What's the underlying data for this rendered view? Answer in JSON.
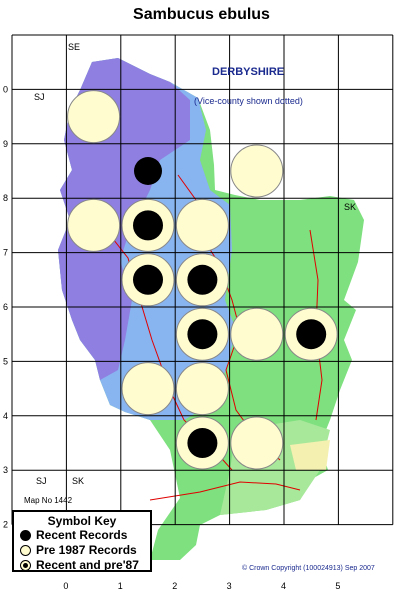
{
  "title": "Sambucus ebulus",
  "county_name": "DERBYSHIRE",
  "county_note": "(Vice-county shown dotted)",
  "grid_labels": {
    "top_se": "SE",
    "top_sj": "SJ",
    "bottom_sj": "SJ",
    "bottom_sk": "SK",
    "right_sk": "SK"
  },
  "map_number": "Map No 1442",
  "copyright": "© Crown Copyright (100024913) Sep 2007",
  "x_axis_ticks": [
    "0",
    "1",
    "2",
    "3",
    "4",
    "5"
  ],
  "y_axis_ticks": [
    "0",
    "9",
    "8",
    "7",
    "6",
    "5",
    "4",
    "3",
    "2"
  ],
  "key": {
    "title": "Symbol Key",
    "recent": "Recent Records",
    "pre1987": "Pre 1987 Records",
    "both": "Recent and pre'87"
  },
  "colors": {
    "recent": "#000000",
    "pre1987": "#fffcd0",
    "grid": "#000000",
    "upland_purple": "#8e7fe0",
    "mid_blue": "#88b4f0",
    "lowland_green": "#7ee07e",
    "river": "#e00000"
  },
  "records": [
    {
      "e": 0,
      "n": 0,
      "type": "pre1987"
    },
    {
      "e": 1,
      "n": 9,
      "type": "recent"
    },
    {
      "e": 3,
      "n": 9,
      "type": "pre1987"
    },
    {
      "e": 0,
      "n": 8,
      "type": "pre1987"
    },
    {
      "e": 1,
      "n": 8,
      "type": "both"
    },
    {
      "e": 2,
      "n": 8,
      "type": "pre1987"
    },
    {
      "e": 1,
      "n": 7,
      "type": "both"
    },
    {
      "e": 2,
      "n": 7,
      "type": "both"
    },
    {
      "e": 2,
      "n": 6,
      "type": "both"
    },
    {
      "e": 3,
      "n": 6,
      "type": "pre1987"
    },
    {
      "e": 4,
      "n": 6,
      "type": "both"
    },
    {
      "e": 1,
      "n": 5,
      "type": "pre1987"
    },
    {
      "e": 2,
      "n": 5,
      "type": "pre1987"
    },
    {
      "e": 2,
      "n": 4,
      "type": "both"
    },
    {
      "e": 3,
      "n": 4,
      "type": "pre1987"
    }
  ]
}
